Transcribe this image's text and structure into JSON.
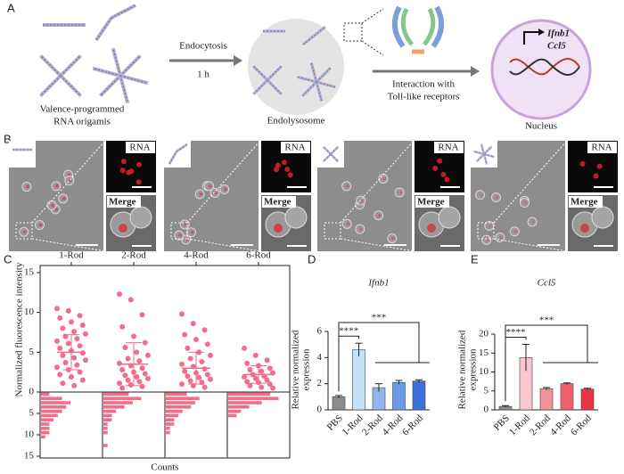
{
  "panel_labels": [
    "A",
    "B",
    "C",
    "D",
    "E"
  ],
  "panel_a": {
    "origami_label": [
      "Valence-programmed",
      "RNA origamis"
    ],
    "step1": [
      "Endocytosis",
      "1 h"
    ],
    "compartment": "Endolysosome",
    "step2": [
      "Interaction with",
      "Toll-like receptors"
    ],
    "genes": [
      "Ifnb1",
      "Ccl5"
    ],
    "nucleus": "Nucleus"
  },
  "panel_b": {
    "panels": [
      [
        "RNA",
        "Merge"
      ],
      [
        "RNA",
        "Merge"
      ],
      [
        "RNA",
        "Merge"
      ],
      [
        "RNA",
        "Merge"
      ]
    ]
  },
  "chart_data": [
    {
      "type": "strip",
      "y_label": "Normalized fluorescence intensity",
      "x_label": "Counts",
      "categories": [
        "1-Rod",
        "2-Rod",
        "4-Rod",
        "6-Rod"
      ],
      "color": "#f26d88",
      "ylim": [
        0,
        15
      ],
      "yticks": [
        0,
        5,
        10,
        15
      ],
      "points": [
        [
          10.5,
          10.2,
          9.6,
          9.3,
          8.8,
          8.4,
          8.0,
          7.6,
          7.3,
          7.0,
          6.7,
          6.4,
          6.1,
          5.8,
          5.5,
          5.2,
          4.9,
          4.6,
          4.3,
          4.0,
          3.7,
          3.4,
          3.1,
          2.8,
          2.5,
          2.2,
          1.9,
          1.5,
          1.1,
          0.8
        ],
        [
          12.3,
          11.6,
          9.7,
          8.2,
          7.0,
          6.2,
          5.6,
          5.0,
          4.6,
          4.2,
          3.9,
          3.6,
          3.3,
          3.0,
          2.8,
          2.5,
          2.3,
          2.1,
          1.9,
          1.7,
          1.5,
          1.3,
          1.1,
          0.9,
          0.7,
          0.5
        ],
        [
          9.8,
          8.6,
          7.8,
          7.2,
          6.6,
          6.0,
          5.5,
          5.0,
          4.6,
          4.2,
          3.8,
          3.5,
          3.2,
          2.9,
          2.6,
          2.4,
          2.2,
          2.0,
          1.8,
          1.6,
          1.4,
          1.2,
          1.0,
          0.8,
          0.6
        ],
        [
          5.5,
          4.6,
          4.0,
          3.6,
          3.3,
          3.0,
          2.8,
          2.6,
          2.4,
          2.2,
          2.0,
          1.9,
          1.7,
          1.5,
          1.3,
          1.2,
          1.0,
          0.8,
          0.6,
          0.5
        ]
      ],
      "means": [
        5.0,
        3.5,
        3.0,
        2.2
      ],
      "sds": [
        2.2,
        2.7,
        2.0,
        1.1
      ],
      "hist_ylim": [
        0,
        15
      ],
      "hist_yticks": [
        5,
        10,
        15
      ],
      "hist_xlim": [
        0,
        14
      ],
      "bins": [
        0,
        1,
        2,
        3,
        4,
        5,
        6,
        7,
        8,
        9,
        10,
        11,
        12,
        13,
        14,
        15
      ],
      "counts": [
        [
          2,
          5,
          7,
          6,
          5,
          4,
          3,
          2,
          2,
          2,
          1,
          0,
          0,
          0,
          0
        ],
        [
          6,
          9,
          7,
          5,
          3,
          2,
          2,
          1,
          1,
          1,
          0,
          0,
          1,
          0,
          0
        ],
        [
          5,
          8,
          7,
          6,
          4,
          3,
          2,
          2,
          1,
          1,
          0,
          0,
          0,
          0,
          0
        ],
        [
          10,
          12,
          8,
          5,
          3,
          2,
          0,
          0,
          0,
          0,
          0,
          0,
          0,
          0,
          0
        ]
      ]
    },
    {
      "type": "bar",
      "title": "Ifnb1",
      "y_label": [
        "Relative normalized",
        "expression"
      ],
      "categories": [
        "PBS",
        "1-Rod",
        "2-Rod",
        "4-Rod",
        "6-Rod"
      ],
      "values": [
        1.0,
        4.6,
        1.7,
        2.1,
        2.2
      ],
      "errors": [
        0.1,
        0.5,
        0.3,
        0.15,
        0.1
      ],
      "colors": [
        "#8c8c8c",
        "#c4e2f8",
        "#8fb5ea",
        "#6b9be6",
        "#3f6fd8"
      ],
      "ylim": [
        0,
        6
      ],
      "yticks": [
        0,
        2,
        4,
        6
      ],
      "annotations": [
        "****",
        "***"
      ]
    },
    {
      "type": "bar",
      "title": "Ccl5",
      "y_label": [
        "Relative normalized",
        "expression"
      ],
      "categories": [
        "PBS",
        "1-Rod",
        "2-Rod",
        "4-Rod",
        "6-Rod"
      ],
      "values": [
        0.9,
        13.8,
        5.6,
        6.9,
        5.5
      ],
      "errors": [
        0.2,
        3.5,
        0.3,
        0.2,
        0.2
      ],
      "colors": [
        "#8c8c8c",
        "#f9c6d2",
        "#f2909c",
        "#ef5f6f",
        "#e8344b"
      ],
      "ylim": [
        0,
        20
      ],
      "yticks": [
        0,
        5,
        10,
        15,
        20
      ],
      "annotations": [
        "****",
        "***"
      ]
    }
  ]
}
